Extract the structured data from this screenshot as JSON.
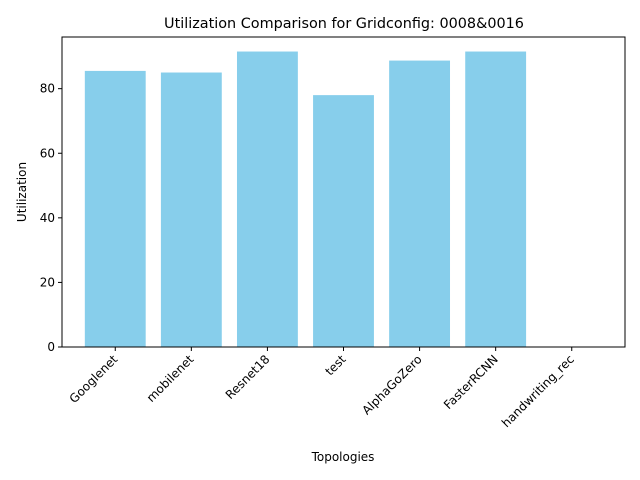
{
  "chart_data": {
    "type": "bar",
    "title": "Utilization Comparison for Gridconfig: 0008&0016",
    "xlabel": "Topologies",
    "ylabel": "Utilization",
    "categories": [
      "Googlenet",
      "mobilenet",
      "Resnet18",
      "test",
      "AlphaGoZero",
      "FasterRCNN",
      "handwriting_rec"
    ],
    "values": [
      85.5,
      85.0,
      91.5,
      78.0,
      88.7,
      91.5,
      0
    ],
    "ylim": [
      0,
      96.0
    ],
    "yticks": [
      0,
      20,
      40,
      60,
      80
    ],
    "bar_color": "#87ceeb",
    "grid": false,
    "legend": "none"
  }
}
